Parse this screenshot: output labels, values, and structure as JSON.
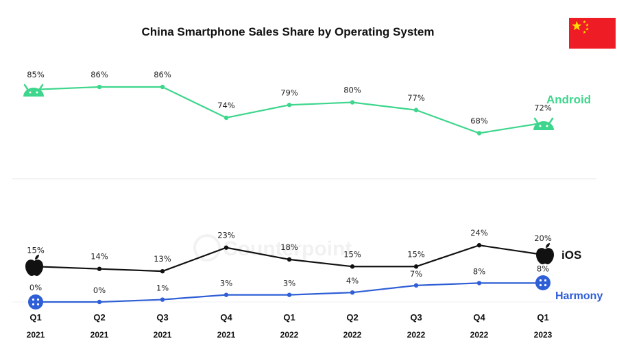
{
  "chart_data": {
    "type": "line",
    "title": "China Smartphone Sales Share by Operating System",
    "categories": [
      "Q1 2021",
      "Q2 2021",
      "Q3 2021",
      "Q4 2021",
      "Q1 2022",
      "Q2 2022",
      "Q3 2022",
      "Q4 2022",
      "Q1 2023"
    ],
    "x_ticks": [
      {
        "q": "Q1",
        "y": "2021"
      },
      {
        "q": "Q2",
        "y": "2021"
      },
      {
        "q": "Q3",
        "y": "2021"
      },
      {
        "q": "Q4",
        "y": "2021"
      },
      {
        "q": "Q1",
        "y": "2022"
      },
      {
        "q": "Q2",
        "y": "2022"
      },
      {
        "q": "Q3",
        "y": "2022"
      },
      {
        "q": "Q4",
        "y": "2022"
      },
      {
        "q": "Q1",
        "y": "2023"
      }
    ],
    "series": [
      {
        "name": "Android",
        "color": "#3dd68c",
        "values": [
          85,
          86,
          86,
          74,
          79,
          80,
          77,
          68,
          72
        ],
        "labels": [
          "85%",
          "86%",
          "86%",
          "74%",
          "79%",
          "80%",
          "77%",
          "68%",
          "72%"
        ]
      },
      {
        "name": "iOS",
        "color": "#111111",
        "values": [
          15,
          14,
          13,
          23,
          18,
          15,
          15,
          24,
          20
        ],
        "labels": [
          "15%",
          "14%",
          "13%",
          "23%",
          "18%",
          "15%",
          "15%",
          "24%",
          "20%"
        ]
      },
      {
        "name": "Harmony",
        "color": "#2f5fd6",
        "values": [
          0,
          0,
          1,
          3,
          3,
          4,
          7,
          8,
          8
        ],
        "labels": [
          "0%",
          "0%",
          "1%",
          "3%",
          "3%",
          "4%",
          "7%",
          "8%",
          "8%"
        ]
      }
    ],
    "legend_placement": "right, next to series ends",
    "grid": false
  },
  "watermark_text": "Counterpoint",
  "colors": {
    "android": "#3dd68c",
    "ios": "#111111",
    "harmony": "#2f5fd6",
    "flag_red": "#ee1c25",
    "flag_star": "#ffde00",
    "separator": "#e6e6e6"
  }
}
